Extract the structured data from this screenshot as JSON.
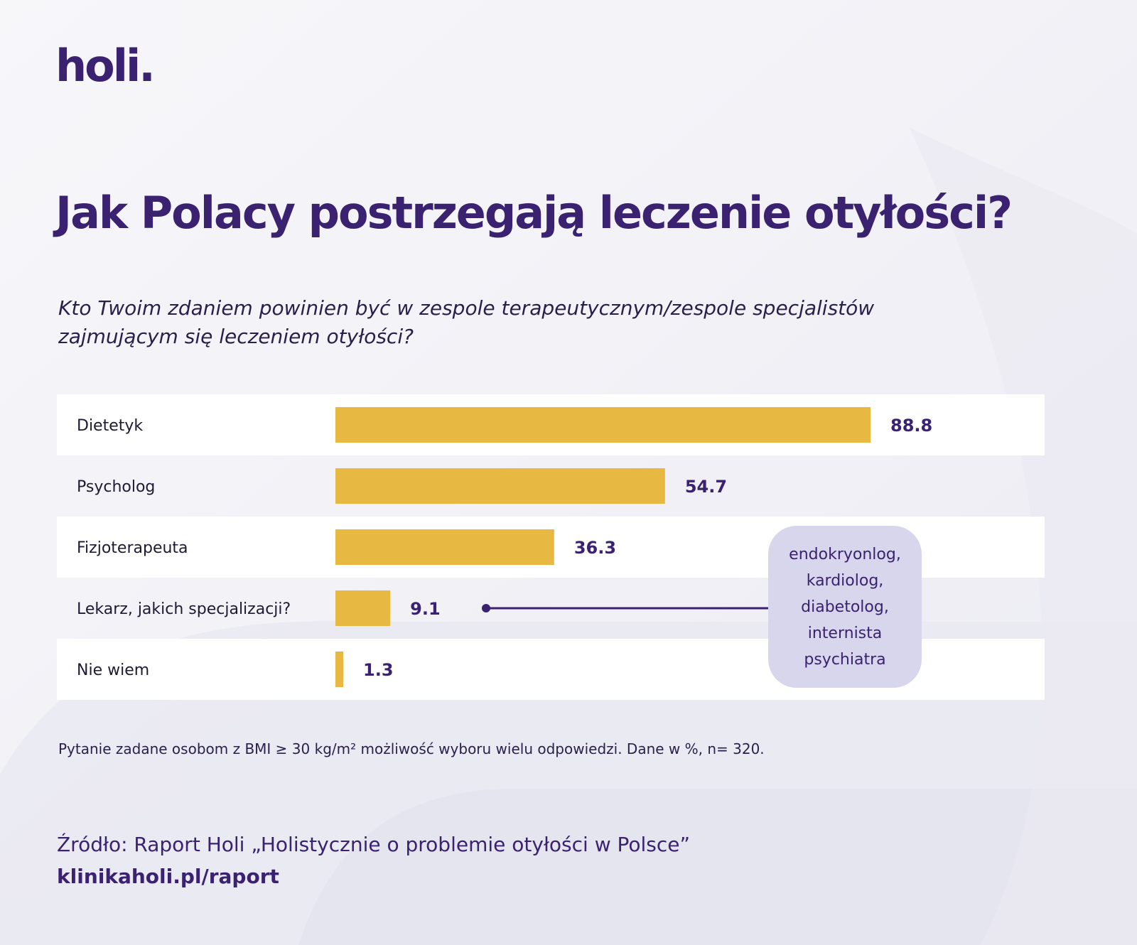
{
  "brand": {
    "logo_text": "holi.",
    "color_primary": "#3a2270",
    "color_bar": "#e8b942",
    "color_callout": "#d8d6ec"
  },
  "chart_data": {
    "type": "bar",
    "orientation": "horizontal",
    "title": "Jak Polacy postrzegają leczenie otyłości?",
    "subtitle": "Kto Twoim zdaniem powinien być w zespole terapeutycznym/zespole specjalistów zajmującym się leczeniem otyłości?",
    "categories": [
      "Dietetyk",
      "Psycholog",
      "Fizjoterapeuta",
      "Lekarz, jakich specjalizacji?",
      "Nie wiem"
    ],
    "values": [
      88.8,
      54.7,
      36.3,
      9.1,
      1.3
    ],
    "value_labels": [
      "88.8",
      "54.7",
      "36.3",
      "9.1",
      "1.3"
    ],
    "xlim": [
      0,
      100
    ],
    "grid": false,
    "legend": "none",
    "annotation": {
      "target_category": "Lekarz, jakich specjalizacji?",
      "lines": [
        "endokryonlog,",
        "kardiolog,",
        "diabetolog,",
        "internista",
        "psychiatra"
      ]
    }
  },
  "footer": {
    "note": "Pytanie zadane osobom z BMI ≥ 30 kg/m² możliwość wyboru wielu odpowiedzi. Dane w %, n= 320.",
    "source": "Źródło: Raport Holi „Holistycznie o problemie otyłości w Polsce”",
    "url": "klinikaholi.pl/raport"
  }
}
